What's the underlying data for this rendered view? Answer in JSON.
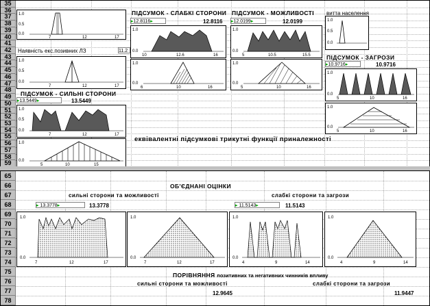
{
  "top_rows": [
    "35",
    "36",
    "37",
    "38",
    "39",
    "40",
    "41",
    "42",
    "43",
    "44",
    "45",
    "46",
    "47",
    "48",
    "49",
    "50",
    "51",
    "52",
    "53",
    "54",
    "55",
    "56",
    "57",
    "58",
    "59"
  ],
  "bottom_rows": [
    "65",
    "66",
    "67",
    "68",
    "69",
    "70",
    "71",
    "72",
    "73",
    "74",
    "75",
    "76",
    "77",
    "78"
  ],
  "top": {
    "label_availability": "Наявність екс.позивних ЛЗ",
    "label_availability_val": "11.2",
    "summary_strengths": "ПІДСУМОК - СИЛЬНІ СТОРОНИ",
    "strengths_spin": "13.5449",
    "strengths_val": "13.5449",
    "summary_weak": "ПІДСУМОК - СЛАБКІ СТОРОНИ",
    "weak_spin": "12.8116",
    "weak_val": "12.8116",
    "summary_opp": "ПІДСУМОК - МОЖЛИВОСТІ",
    "opp_spin": "12.0199",
    "opp_val": "12.0199",
    "label_population": "витта населення",
    "summary_threats": "ПІДСУМОК - ЗАГРОЗИ",
    "threats_spin": "10.9716",
    "threats_val": "10.9716",
    "equiv_title": "еквівалентні підсумкові трикутні функції приналежності"
  },
  "bottom": {
    "combined_title": "ОБ'ЄДНАНІ ОЦІНКИ",
    "pos_label": "сильні сторони та можливості",
    "neg_label": "слабкі сторони та загрози",
    "pos_spin": "13.3778",
    "pos_val": "13.3778",
    "neg_spin": "11.5143",
    "neg_val": "11.5143",
    "compare_title_a": "ПОРІВНЯННЯ",
    "compare_title_b": "позитивних та негативних чинників впливу",
    "cmp_pos_label": "сильні сторони та можливості",
    "cmp_neg_label": "слабкі сторони та загрози",
    "cmp_pos_val": "12.9645",
    "cmp_neg_val": "11.9447"
  },
  "ticks": {
    "y10": "1.0",
    "y05": "0.5",
    "y00": "0.0",
    "a": [
      "7",
      "12",
      "17"
    ],
    "b": [
      "10",
      "12.5"
    ],
    "c": [
      "5",
      "10.5",
      "15.5"
    ],
    "d": [
      "6",
      "10",
      "16"
    ],
    "e": [
      "5",
      "10",
      "16"
    ],
    "f": [
      "4",
      "9",
      "14"
    ]
  },
  "colors": {
    "fill_dark": "#595959",
    "fill_dots": "#c0c0c0",
    "spinner": "#00aa00"
  }
}
